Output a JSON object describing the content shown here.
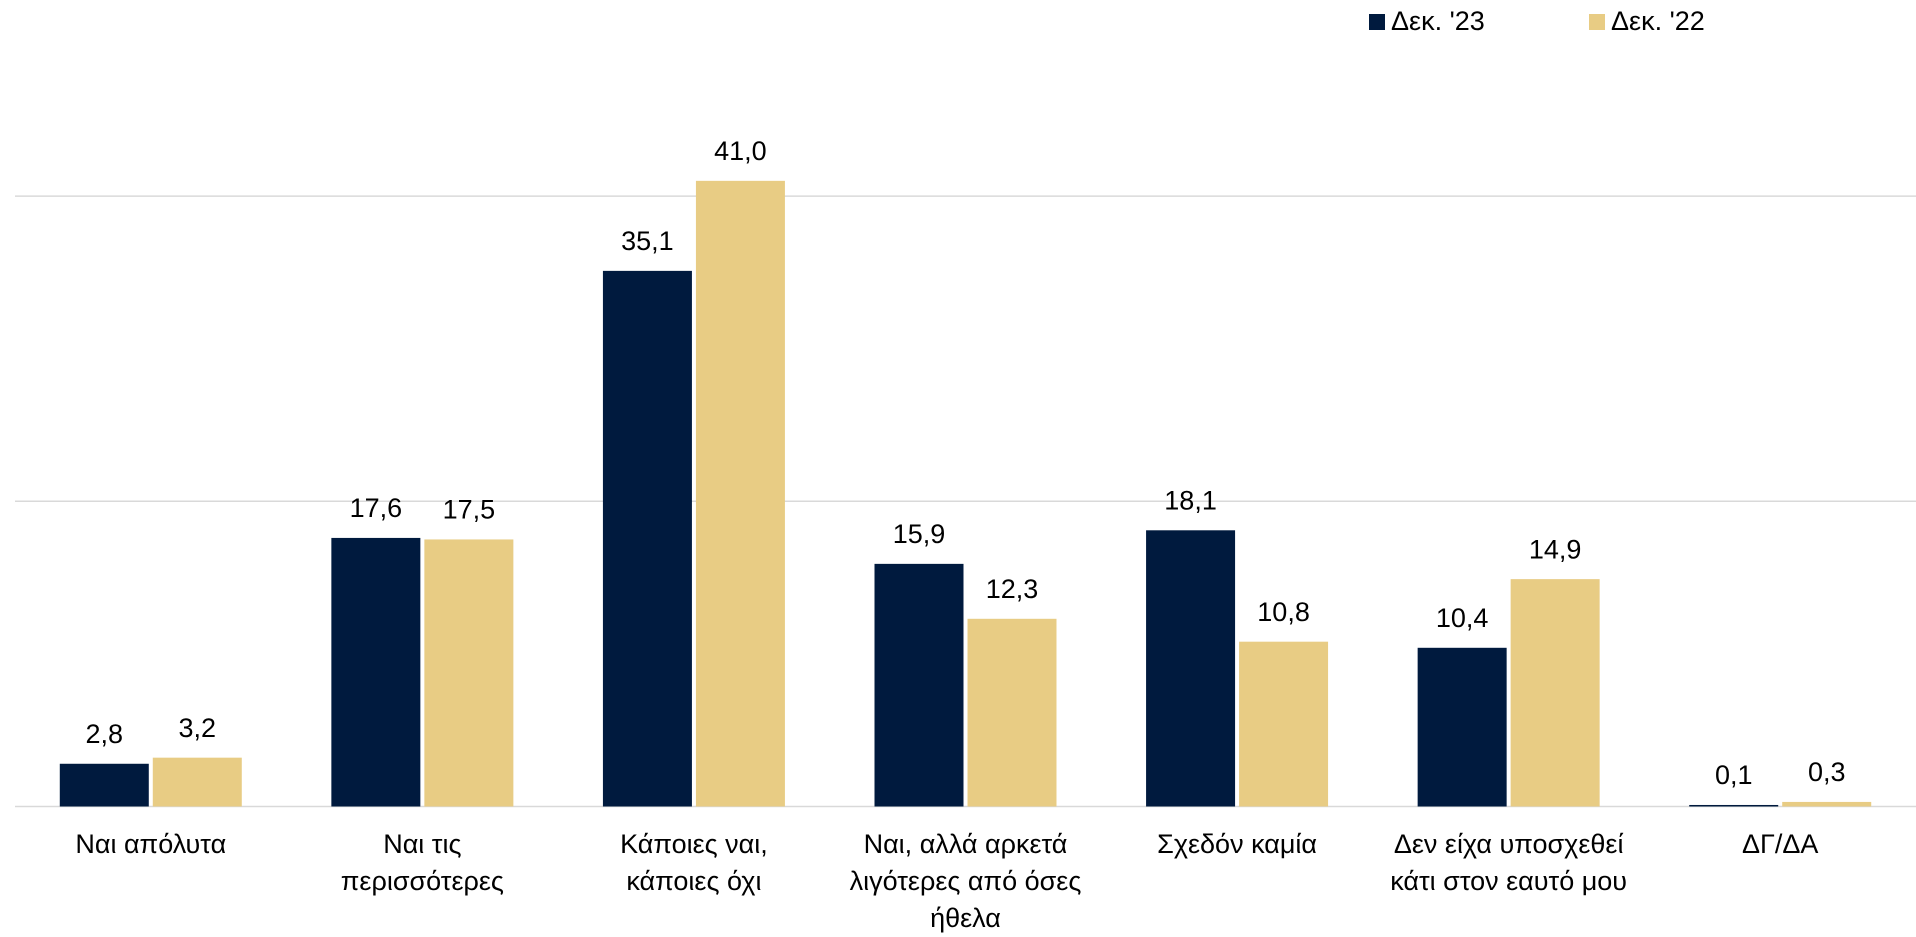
{
  "chart_data": {
    "type": "bar",
    "categories": [
      "Ναι απόλυτα",
      "Ναι τις περισσότερες",
      "Κάποιες ναι, κάποιες όχι",
      "Ναι, αλλά αρκετά λιγότερες από όσες ήθελα",
      "Σχεδόν καμία",
      "Δεν είχα υποσχεθεί κάτι στον εαυτό μου",
      "ΔΓ/ΔΑ"
    ],
    "series": [
      {
        "name": "Δεκ. '23",
        "color": "#001a3e",
        "values": [
          2.8,
          17.6,
          35.1,
          15.9,
          18.1,
          10.4,
          0.1
        ],
        "value_labels": [
          "2,8",
          "17,6",
          "35,1",
          "15,9",
          "18,1",
          "10,4",
          "0,1"
        ]
      },
      {
        "name": "Δεκ. '22",
        "color": "#e8cc84",
        "values": [
          3.2,
          17.5,
          41.0,
          12.3,
          10.8,
          14.9,
          0.3
        ],
        "value_labels": [
          "3,2",
          "17,5",
          "41,0",
          "12,3",
          "10,8",
          "14,9",
          "0,3"
        ]
      }
    ],
    "ylim": [
      0,
      50
    ],
    "yticks": [
      0,
      20,
      40
    ],
    "grid": true,
    "legend": "top-right"
  }
}
